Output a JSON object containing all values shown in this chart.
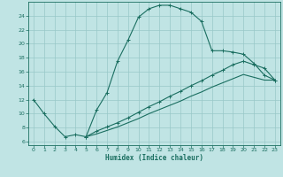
{
  "xlabel": "Humidex (Indice chaleur)",
  "bg_color": "#c0e4e4",
  "grid_color": "#98c8c8",
  "line_color": "#1a6e60",
  "xlim": [
    -0.5,
    23.5
  ],
  "ylim": [
    5.5,
    26.0
  ],
  "xticks": [
    0,
    1,
    2,
    3,
    4,
    5,
    6,
    7,
    8,
    9,
    10,
    11,
    12,
    13,
    14,
    15,
    16,
    17,
    18,
    19,
    20,
    21,
    22,
    23
  ],
  "yticks": [
    6,
    8,
    10,
    12,
    14,
    16,
    18,
    20,
    22,
    24
  ],
  "curve1_x": [
    0,
    1,
    2,
    3,
    4,
    5,
    6,
    7,
    8,
    9,
    10,
    11,
    12,
    13,
    14,
    15,
    16,
    17,
    18,
    19,
    20,
    21,
    22,
    23
  ],
  "curve1_y": [
    12,
    10,
    8.2,
    6.7,
    7.0,
    6.7,
    10.5,
    13.0,
    17.5,
    20.5,
    23.8,
    25.0,
    25.5,
    25.5,
    25.0,
    24.5,
    23.2,
    19.0,
    19.0,
    18.8,
    18.5,
    17.2,
    15.5,
    14.8
  ],
  "curve2_x": [
    5,
    6,
    7,
    8,
    9,
    10,
    11,
    12,
    13,
    14,
    15,
    16,
    17,
    18,
    19,
    20,
    21,
    22,
    23
  ],
  "curve2_y": [
    6.7,
    7.5,
    8.1,
    8.7,
    9.4,
    10.2,
    11.0,
    11.7,
    12.5,
    13.2,
    14.0,
    14.7,
    15.5,
    16.2,
    17.0,
    17.5,
    17.0,
    16.5,
    14.8
  ],
  "curve3_x": [
    5,
    6,
    7,
    8,
    9,
    10,
    11,
    12,
    13,
    14,
    15,
    16,
    17,
    18,
    19,
    20,
    21,
    22,
    23
  ],
  "curve3_y": [
    6.7,
    7.1,
    7.6,
    8.1,
    8.7,
    9.3,
    10.0,
    10.6,
    11.2,
    11.8,
    12.5,
    13.1,
    13.8,
    14.4,
    15.0,
    15.6,
    15.2,
    14.8,
    14.8
  ]
}
